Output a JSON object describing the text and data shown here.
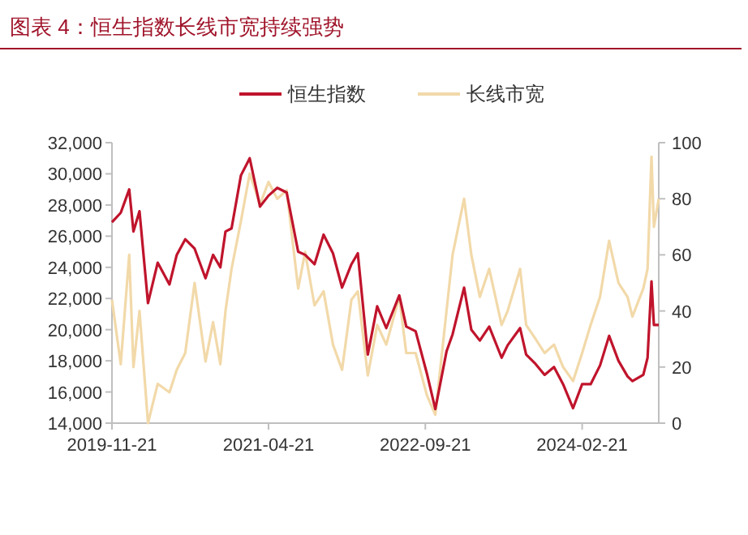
{
  "chart_data": {
    "type": "line",
    "title": "图表 4：恒生指数长线市宽持续强势",
    "x": [
      "2019-11-21",
      "2019-12-20",
      "2020-01-17",
      "2020-01-31",
      "2020-02-20",
      "2020-03-19",
      "2020-04-20",
      "2020-05-29",
      "2020-06-22",
      "2020-07-20",
      "2020-08-20",
      "2020-09-25",
      "2020-10-20",
      "2020-11-13",
      "2020-11-30",
      "2020-12-20",
      "2021-01-20",
      "2021-02-18",
      "2021-03-24",
      "2021-04-21",
      "2021-05-20",
      "2021-06-20",
      "2021-07-28",
      "2021-08-20",
      "2021-09-20",
      "2021-10-20",
      "2021-11-20",
      "2021-12-20",
      "2022-01-20",
      "2022-02-10",
      "2022-03-15",
      "2022-04-15",
      "2022-05-15",
      "2022-06-27",
      "2022-07-20",
      "2022-08-20",
      "2022-09-26",
      "2022-10-24",
      "2022-11-30",
      "2022-12-20",
      "2023-01-27",
      "2023-02-20",
      "2023-03-20",
      "2023-04-20",
      "2023-05-31",
      "2023-06-20",
      "2023-07-31",
      "2023-08-20",
      "2023-09-20",
      "2023-10-20",
      "2023-11-20",
      "2023-12-20",
      "2024-01-22",
      "2024-02-21",
      "2024-03-20",
      "2024-04-20",
      "2024-05-20",
      "2024-06-20",
      "2024-07-20",
      "2024-08-05",
      "2024-09-10",
      "2024-09-24",
      "2024-10-07",
      "2024-10-15",
      "2024-10-31"
    ],
    "series": [
      {
        "name": "恒生指数",
        "color": "#c0142c",
        "axis": "y",
        "values": [
          26900,
          27500,
          29000,
          26300,
          27600,
          21700,
          24300,
          22900,
          24800,
          25800,
          25200,
          23300,
          24800,
          24000,
          26300,
          26500,
          29900,
          31000,
          27900,
          28600,
          29100,
          28800,
          25000,
          24800,
          24200,
          26100,
          24900,
          22700,
          24200,
          24900,
          18400,
          21500,
          20100,
          22200,
          20200,
          19900,
          17200,
          14900,
          18600,
          19700,
          22700,
          20000,
          19300,
          20200,
          18200,
          19000,
          20100,
          18400,
          17800,
          17100,
          17600,
          16500,
          14960,
          16500,
          16500,
          17700,
          19600,
          18000,
          17000,
          16700,
          17100,
          18200,
          23100,
          20300,
          20300
        ]
      },
      {
        "name": "长线市宽",
        "color": "#f2d9a9",
        "axis": "y2",
        "values": [
          44,
          21,
          60,
          20,
          40,
          0,
          14,
          11,
          19,
          25,
          50,
          22,
          36,
          21,
          40,
          55,
          72,
          89,
          78,
          86,
          80,
          83,
          48,
          61,
          42,
          47,
          28,
          19,
          44,
          47,
          17,
          35,
          28,
          45,
          25,
          25,
          10,
          3,
          40,
          60,
          80,
          60,
          45,
          55,
          35,
          40,
          55,
          35,
          30,
          25,
          28,
          20,
          15,
          25,
          35,
          45,
          65,
          50,
          45,
          38,
          48,
          55,
          95,
          70,
          80
        ]
      }
    ],
    "xlim": [
      "2019-11-21",
      "2024-10-31"
    ],
    "xticks": [
      "2019-11-21",
      "2021-04-21",
      "2022-09-21",
      "2024-02-21"
    ],
    "ylim": [
      14000,
      32000
    ],
    "yticks": [
      {
        "value": 14000,
        "label": "14,000"
      },
      {
        "value": 16000,
        "label": "16,000"
      },
      {
        "value": 18000,
        "label": "18,000"
      },
      {
        "value": 20000,
        "label": "20,000"
      },
      {
        "value": 22000,
        "label": "22,000"
      },
      {
        "value": 24000,
        "label": "24,000"
      },
      {
        "value": 26000,
        "label": "26,000"
      },
      {
        "value": 28000,
        "label": "28,000"
      },
      {
        "value": 30000,
        "label": "30,000"
      },
      {
        "value": 32000,
        "label": "32,000"
      }
    ],
    "y2lim": [
      0,
      100
    ],
    "y2ticks": [
      0,
      20,
      40,
      60,
      80,
      100
    ],
    "legend": "top",
    "grid": false,
    "marker": "none",
    "line_style": "solid"
  }
}
